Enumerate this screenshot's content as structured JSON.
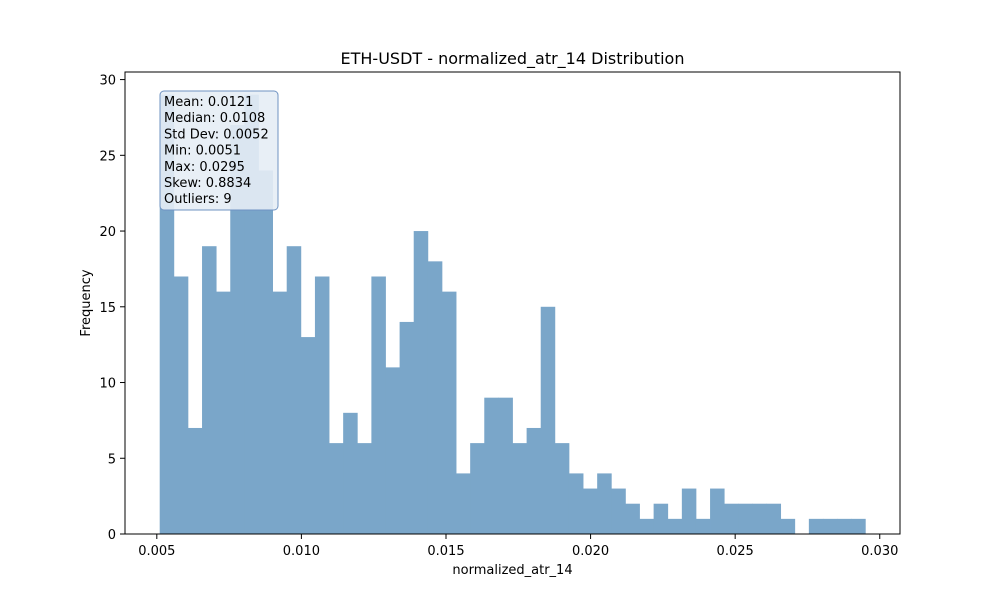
{
  "chart_data": {
    "type": "bar",
    "title": "ETH-USDT - normalized_atr_14 Distribution",
    "xlabel": "normalized_atr_14",
    "ylabel": "Frequency",
    "bin_start": 0.0051,
    "bin_end": 0.0295,
    "values": [
      29,
      17,
      7,
      19,
      16,
      27,
      29,
      24,
      16,
      19,
      13,
      17,
      6,
      8,
      6,
      17,
      11,
      14,
      20,
      18,
      16,
      4,
      6,
      9,
      9,
      6,
      7,
      15,
      6,
      4,
      3,
      4,
      3,
      2,
      1,
      2,
      1,
      3,
      1,
      3,
      2,
      2,
      2,
      2,
      1,
      0,
      1,
      1,
      1,
      1
    ],
    "xlim": [
      0.0039,
      0.0307
    ],
    "ylim": [
      0,
      30.5
    ],
    "xticks": [
      "0.005",
      "0.010",
      "0.015",
      "0.020",
      "0.025",
      "0.030"
    ],
    "yticks": [
      "0",
      "5",
      "10",
      "15",
      "20",
      "25",
      "30"
    ],
    "bar_color": "#7aa6c9",
    "grid": false,
    "stats": [
      "Mean: 0.0121",
      "Median: 0.0108",
      "Std Dev: 0.0052",
      "Min: 0.0051",
      "Max: 0.0295",
      "Skew: 0.8834",
      "Outliers: 9"
    ],
    "stats_box_fill": "#e6edf5",
    "stats_box_stroke": "#6f93c2"
  }
}
